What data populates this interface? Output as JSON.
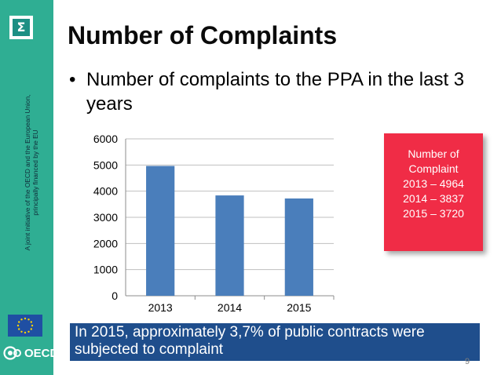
{
  "sidebar": {
    "logo_symbol": "Σ",
    "vertical_text_line1": "A joint initiative of the OECD and the European Union,",
    "vertical_text_line2": "principally financed by the EU",
    "oecd_label": "OECD",
    "colors": {
      "sidebar_bg": "#2fae93",
      "flag_bg": "#1f4fa3",
      "flag_stars": "#ffd200"
    }
  },
  "slide": {
    "title": "Number of Complaints",
    "bullet": "Number of complaints to the PPA in the last 3 years",
    "callout_lines": [
      "Number of",
      "Complaint",
      "2013 – 4964",
      "2014 – 3837",
      "2015 – 3720"
    ],
    "footer_line1": "In 2015, approximately 3,7% of public contracts were",
    "footer_line2": "subjected to complaint",
    "page_number": "9"
  },
  "chart_data": {
    "type": "bar",
    "categories": [
      "2013",
      "2014",
      "2015"
    ],
    "values": [
      4964,
      3837,
      3720
    ],
    "title": "",
    "xlabel": "",
    "ylabel": "",
    "ylim": [
      0,
      6000
    ],
    "yticks": [
      0,
      1000,
      2000,
      3000,
      4000,
      5000,
      6000
    ],
    "grid": true,
    "bar_color": "#4a7ebb"
  }
}
